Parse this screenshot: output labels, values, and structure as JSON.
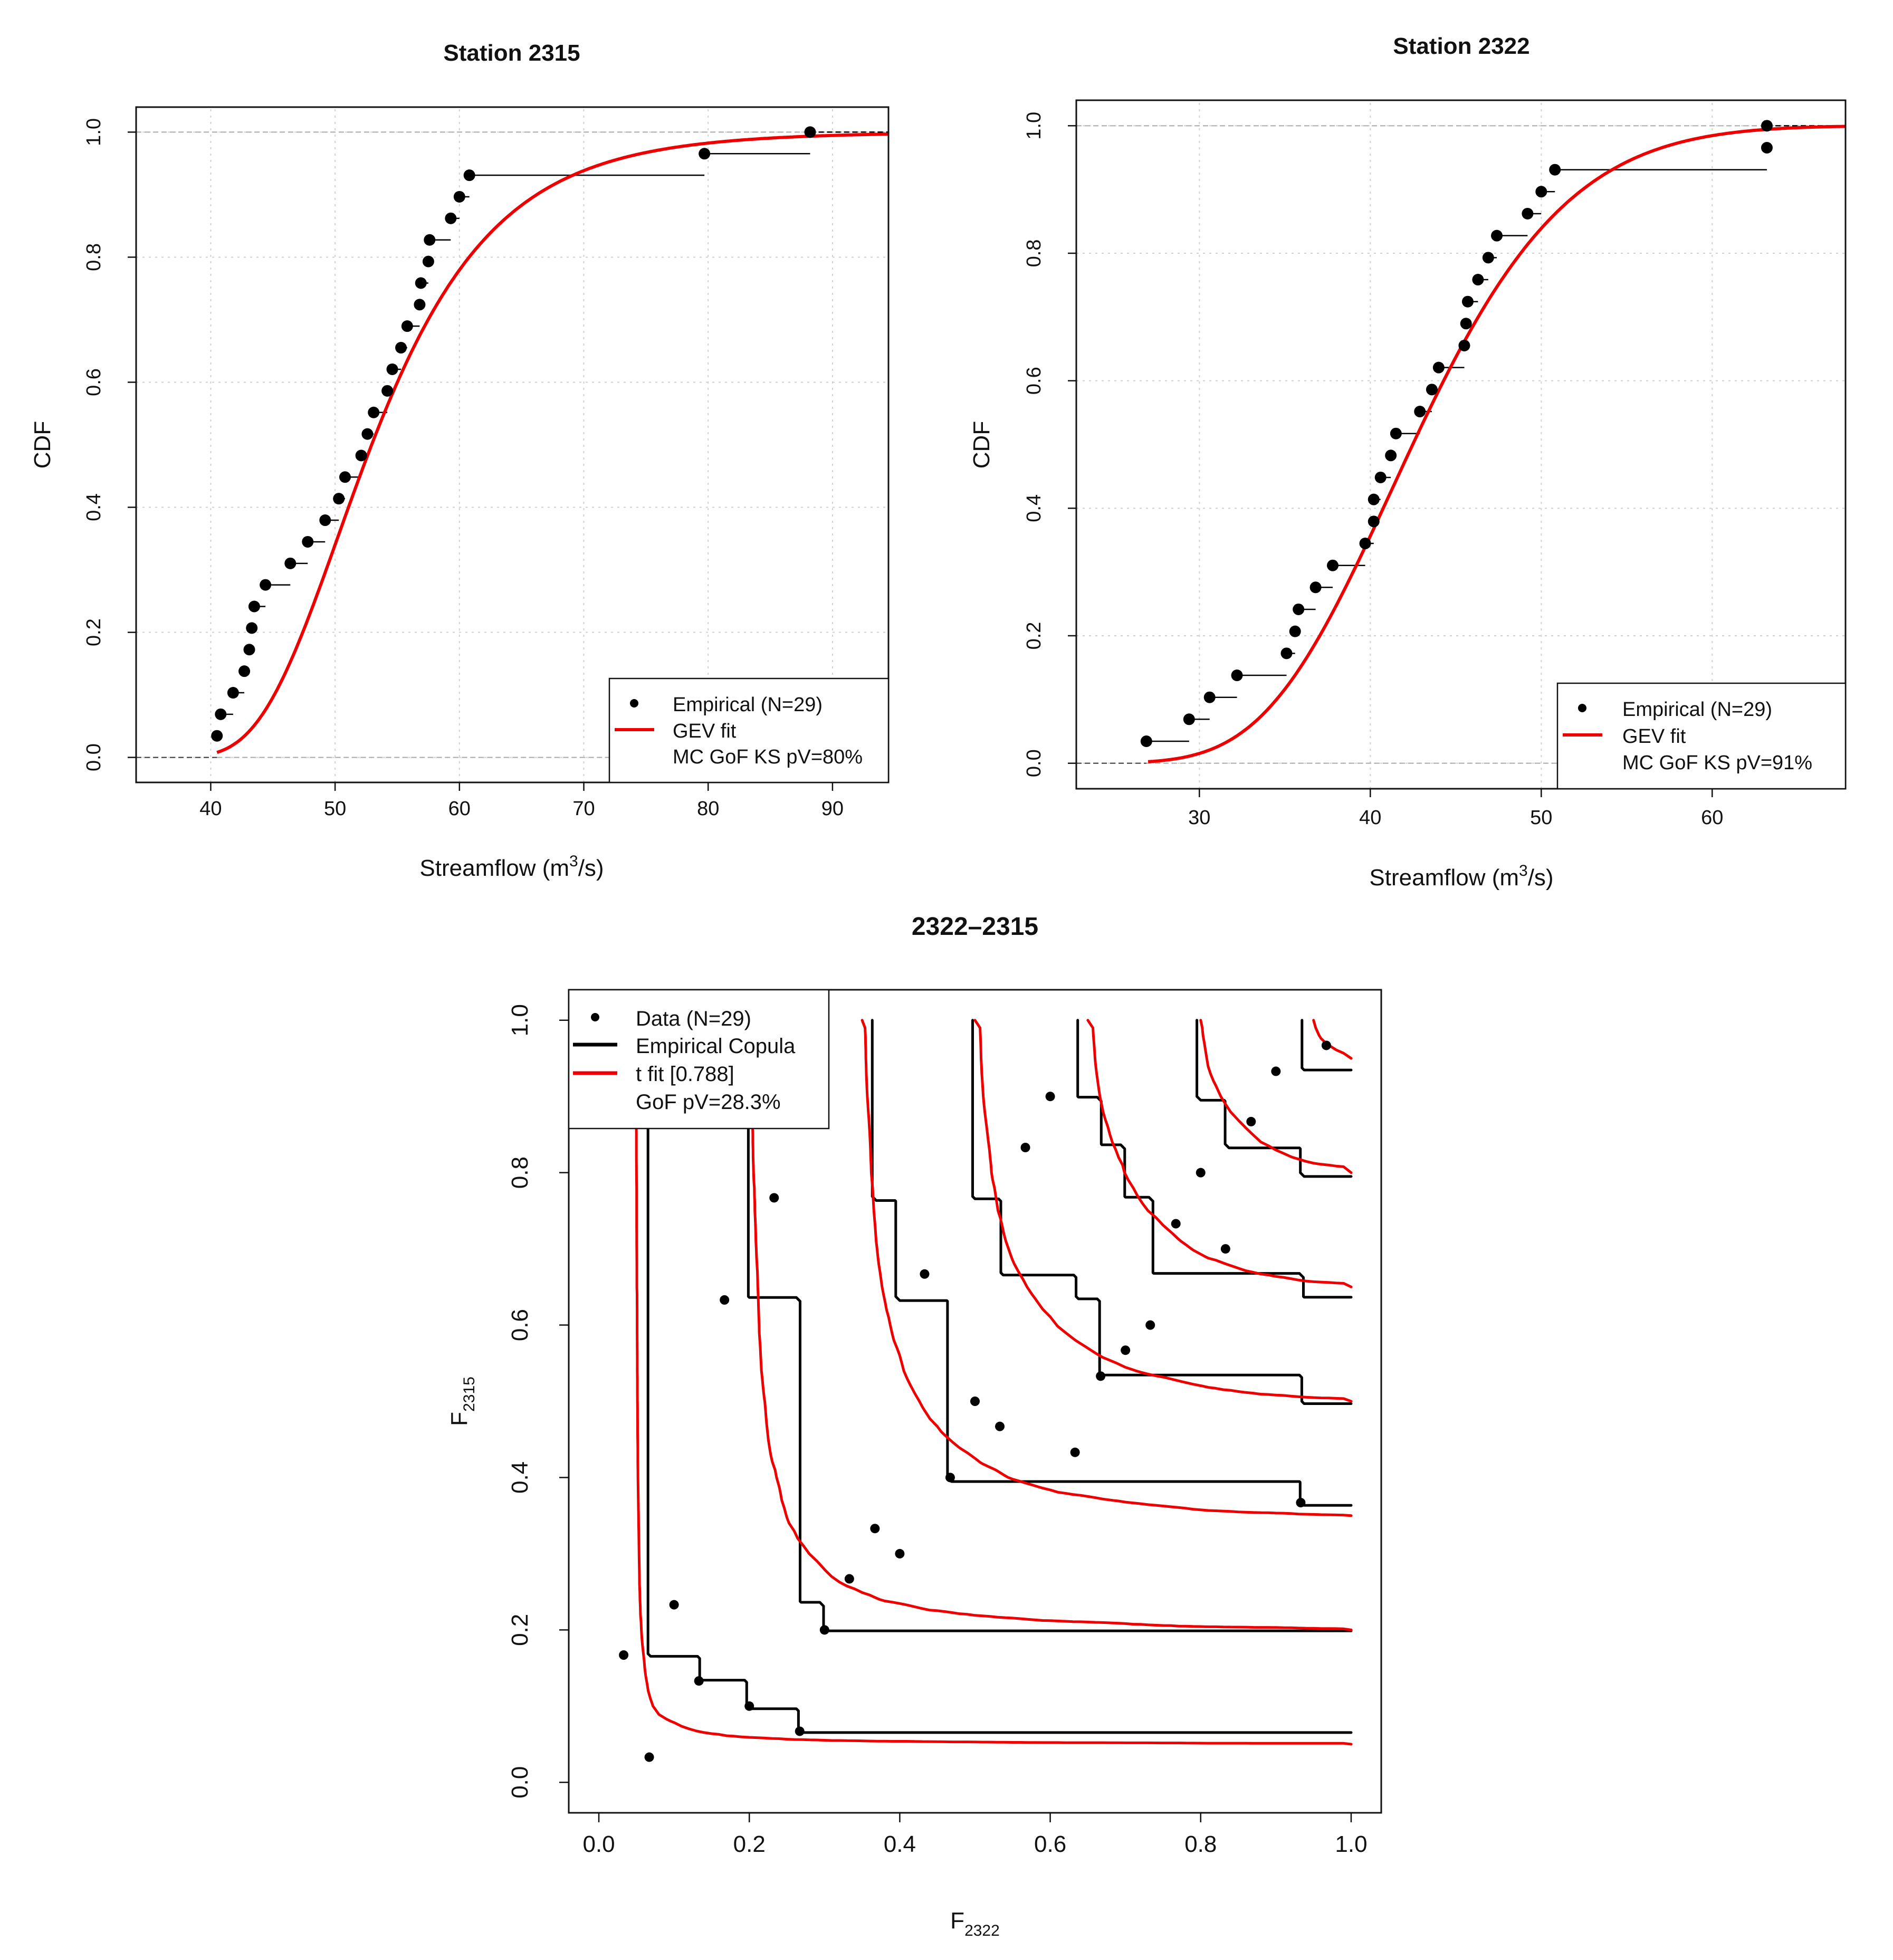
{
  "colors": {
    "empirical": "#000000",
    "fit": "#ee0000",
    "grid": "#d0d0d0",
    "axis": "#111111"
  },
  "chart_data": [
    {
      "id": "cdf-2315",
      "type": "scatter",
      "title": "Station 2315",
      "xlabel_main": "Streamflow (m",
      "xlabel_sup": "3",
      "xlabel_tail": "/s)",
      "ylabel": "CDF",
      "xlim": [
        34,
        94.5
      ],
      "ylim": [
        -0.04,
        1.04
      ],
      "xticks": [
        40,
        50,
        60,
        70,
        80,
        90
      ],
      "yticks": [
        0,
        0.2,
        0.4,
        0.6,
        0.8,
        1.0
      ],
      "ytick_labels": [
        "0.0",
        "0.2",
        "0.4",
        "0.6",
        "0.8",
        "1.0"
      ],
      "gev": {
        "mu": 50.5,
        "sigma": 6.6,
        "xi": 0.05,
        "x_start": 40.5,
        "x_end": 94.5
      },
      "empirical_x": [
        40.5,
        40.8,
        41.8,
        42.7,
        43.1,
        43.3,
        43.5,
        44.4,
        46.4,
        47.8,
        49.2,
        50.3,
        50.8,
        52.1,
        52.6,
        53.1,
        54.2,
        54.6,
        55.3,
        55.8,
        56.8,
        56.9,
        57.5,
        57.6,
        59.3,
        60.0,
        60.8,
        79.7,
        88.2
      ],
      "empirical_y": [
        0.0345,
        0.069,
        0.1034,
        0.1379,
        0.1724,
        0.2069,
        0.2414,
        0.2759,
        0.3103,
        0.3448,
        0.3793,
        0.4138,
        0.4483,
        0.4828,
        0.5172,
        0.5517,
        0.5862,
        0.6207,
        0.6552,
        0.6897,
        0.7241,
        0.7586,
        0.7931,
        0.8276,
        0.8621,
        0.8966,
        0.931,
        0.9655,
        1.0
      ],
      "legend": {
        "items": [
          "Empirical (N=29)",
          "GEV fit",
          "MC GoF KS pV=80%"
        ],
        "position": "bottom-right"
      }
    },
    {
      "id": "cdf-2322",
      "type": "scatter",
      "title": "Station 2322",
      "xlabel_main": "Streamflow (m",
      "xlabel_sup": "3",
      "xlabel_tail": "/s)",
      "ylabel": "CDF",
      "xlim": [
        22.8,
        67.8
      ],
      "ylim": [
        -0.04,
        1.04
      ],
      "xticks": [
        30,
        40,
        50,
        60
      ],
      "yticks": [
        0,
        0.2,
        0.4,
        0.6,
        0.8,
        1.0
      ],
      "ytick_labels": [
        "0.0",
        "0.2",
        "0.4",
        "0.6",
        "0.8",
        "1.0"
      ],
      "gev": {
        "mu": 40.2,
        "sigma": 6.4,
        "xi": -0.15,
        "x_start": 27.0,
        "x_end": 67.8
      },
      "empirical_x": [
        26.9,
        29.4,
        30.6,
        32.2,
        35.1,
        35.6,
        35.8,
        36.8,
        37.8,
        39.7,
        40.2,
        40.2,
        40.6,
        41.2,
        41.5,
        42.9,
        43.6,
        44.0,
        45.5,
        45.6,
        45.7,
        46.3,
        46.9,
        47.4,
        49.2,
        50.0,
        50.8,
        63.2,
        63.2
      ],
      "empirical_y": [
        0.0345,
        0.069,
        0.1034,
        0.1379,
        0.1724,
        0.2069,
        0.2414,
        0.2759,
        0.3103,
        0.3448,
        0.3793,
        0.4138,
        0.4483,
        0.4828,
        0.5172,
        0.5517,
        0.5862,
        0.6207,
        0.6552,
        0.6897,
        0.7241,
        0.7586,
        0.7931,
        0.8276,
        0.8621,
        0.8966,
        0.931,
        0.9655,
        1.0
      ],
      "legend": {
        "items": [
          "Empirical (N=29)",
          "GEV fit",
          "MC GoF KS pV=91%"
        ],
        "position": "bottom-right"
      }
    },
    {
      "id": "copula-2322-2315",
      "type": "scatter",
      "title": "2322–2315",
      "xlabel": "F",
      "xlabel_sub": "2322",
      "ylabel": "F",
      "ylabel_sub": "2315",
      "xlim": [
        -0.04,
        1.04
      ],
      "ylim": [
        -0.04,
        1.04
      ],
      "xticks": [
        0,
        0.2,
        0.4,
        0.6,
        0.8,
        1.0
      ],
      "yticks": [
        0,
        0.2,
        0.4,
        0.6,
        0.8,
        1.0
      ],
      "tick_labels": [
        "0.0",
        "0.2",
        "0.4",
        "0.6",
        "0.8",
        "1.0"
      ],
      "data_u": [
        0.033,
        0.067,
        0.1,
        0.133,
        0.167,
        0.2,
        0.233,
        0.267,
        0.3,
        0.333,
        0.367,
        0.4,
        0.433,
        0.467,
        0.5,
        0.533,
        0.567,
        0.6,
        0.633,
        0.667,
        0.7,
        0.733,
        0.767,
        0.8,
        0.833,
        0.867,
        0.9,
        0.933,
        0.967
      ],
      "data_v": [
        0.167,
        0.033,
        0.233,
        0.133,
        0.633,
        0.1,
        0.767,
        0.067,
        0.2,
        0.267,
        0.333,
        0.3,
        0.667,
        0.4,
        0.5,
        0.467,
        0.833,
        0.9,
        0.433,
        0.533,
        0.567,
        0.6,
        0.733,
        0.8,
        0.7,
        0.867,
        0.933,
        0.367,
        0.967
      ],
      "contour_levels": [
        0.05,
        0.2,
        0.35,
        0.5,
        0.65,
        0.8,
        0.95
      ],
      "t_copula_rho": 0.788,
      "t_copula_df": 4,
      "legend": {
        "items": [
          "Data (N=29)",
          "Empirical Copula",
          "t fit [0.788]",
          "GoF pV=28.3%"
        ],
        "position": "top-left"
      }
    }
  ]
}
